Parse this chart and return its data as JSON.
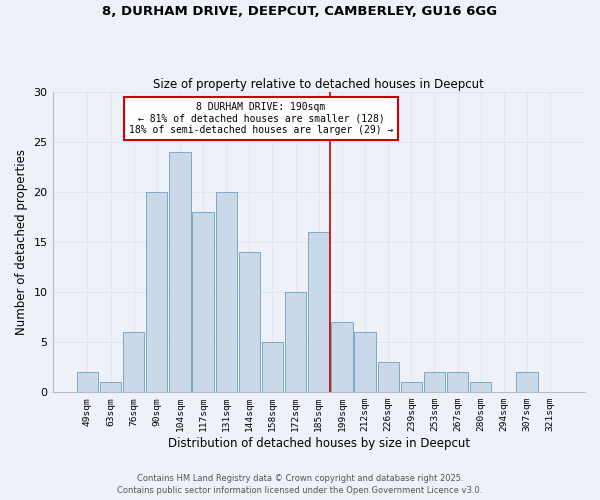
{
  "title1": "8, DURHAM DRIVE, DEEPCUT, CAMBERLEY, GU16 6GG",
  "title2": "Size of property relative to detached houses in Deepcut",
  "xlabel": "Distribution of detached houses by size in Deepcut",
  "ylabel": "Number of detached properties",
  "bin_labels": [
    "49sqm",
    "63sqm",
    "76sqm",
    "90sqm",
    "104sqm",
    "117sqm",
    "131sqm",
    "144sqm",
    "158sqm",
    "172sqm",
    "185sqm",
    "199sqm",
    "212sqm",
    "226sqm",
    "239sqm",
    "253sqm",
    "267sqm",
    "280sqm",
    "294sqm",
    "307sqm",
    "321sqm"
  ],
  "bar_values": [
    2,
    1,
    6,
    20,
    24,
    18,
    20,
    14,
    5,
    10,
    16,
    7,
    6,
    3,
    1,
    2,
    2,
    1,
    0,
    2,
    0
  ],
  "bar_color": "#c9d9ea",
  "bar_edge_color": "#7aaac8",
  "grid_color": "#dce8f0",
  "background_color": "#eef2f8",
  "vline_x_bin": 10,
  "vline_color": "#cc0000",
  "annotation_text": "8 DURHAM DRIVE: 190sqm\n← 81% of detached houses are smaller (128)\n18% of semi-detached houses are larger (29) →",
  "annotation_box_facecolor": "#ffffff",
  "annotation_box_edgecolor": "#cc0000",
  "ylim": [
    0,
    30
  ],
  "yticks": [
    0,
    5,
    10,
    15,
    20,
    25,
    30
  ],
  "footer1": "Contains HM Land Registry data © Crown copyright and database right 2025.",
  "footer2": "Contains public sector information licensed under the Open Government Licence v3.0."
}
